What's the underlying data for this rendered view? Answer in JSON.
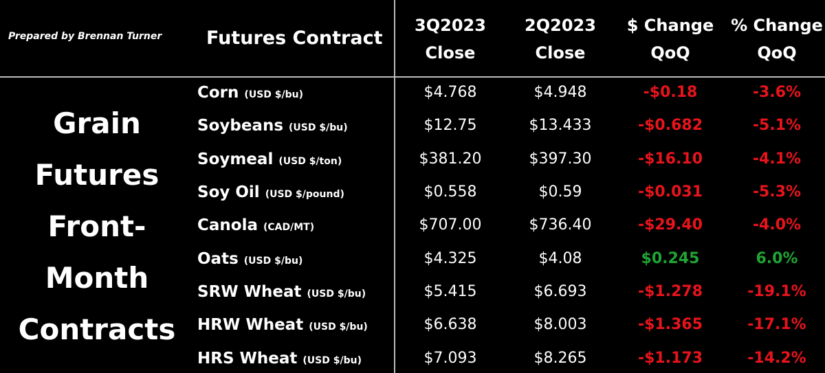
{
  "header": {
    "credit": "Prepared by Brennan Turner",
    "contract_heading": "Futures Contract",
    "columns": [
      [
        "3Q2023",
        "Close"
      ],
      [
        "2Q2023",
        "Close"
      ],
      [
        "$ Change",
        "QoQ"
      ],
      [
        "% Change",
        "QoQ"
      ]
    ]
  },
  "side_label": [
    "Grain",
    "Futures",
    "Front-",
    "Month",
    "Contracts"
  ],
  "colors": {
    "down": "#e8141c",
    "up": "#1fa533"
  },
  "table": {
    "rows": [
      {
        "name": "Corn",
        "unit": "(USD $/bu)",
        "cells": [
          "$4.768",
          "$4.948",
          "-$0.18",
          "-3.6%"
        ],
        "trend": "down"
      },
      {
        "name": "Soybeans",
        "unit": "(USD $/bu)",
        "cells": [
          "$12.75",
          "$13.433",
          "-$0.682",
          "-5.1%"
        ],
        "trend": "down"
      },
      {
        "name": "Soymeal",
        "unit": "(USD $/ton)",
        "cells": [
          "$381.20",
          "$397.30",
          "-$16.10",
          "-4.1%"
        ],
        "trend": "down"
      },
      {
        "name": "Soy Oil",
        "unit": "(USD $/pound)",
        "cells": [
          "$0.558",
          "$0.59",
          "-$0.031",
          "-5.3%"
        ],
        "trend": "down"
      },
      {
        "name": "Canola",
        "unit": "(CAD/MT)",
        "cells": [
          "$707.00",
          "$736.40",
          "-$29.40",
          "-4.0%"
        ],
        "trend": "down"
      },
      {
        "name": "Oats",
        "unit": "(USD $/bu)",
        "cells": [
          "$4.325",
          "$4.08",
          "$0.245",
          "6.0%"
        ],
        "trend": "up"
      },
      {
        "name": "SRW Wheat",
        "unit": "(USD $/bu)",
        "cells": [
          "$5.415",
          "$6.693",
          "-$1.278",
          "-19.1%"
        ],
        "trend": "down"
      },
      {
        "name": "HRW Wheat",
        "unit": "(USD $/bu)",
        "cells": [
          "$6.638",
          "$8.003",
          "-$1.365",
          "-17.1%"
        ],
        "trend": "down"
      },
      {
        "name": "HRS Wheat",
        "unit": "(USD $/bu)",
        "cells": [
          "$7.093",
          "$8.265",
          "-$1.173",
          "-14.2%"
        ],
        "trend": "down"
      }
    ]
  }
}
